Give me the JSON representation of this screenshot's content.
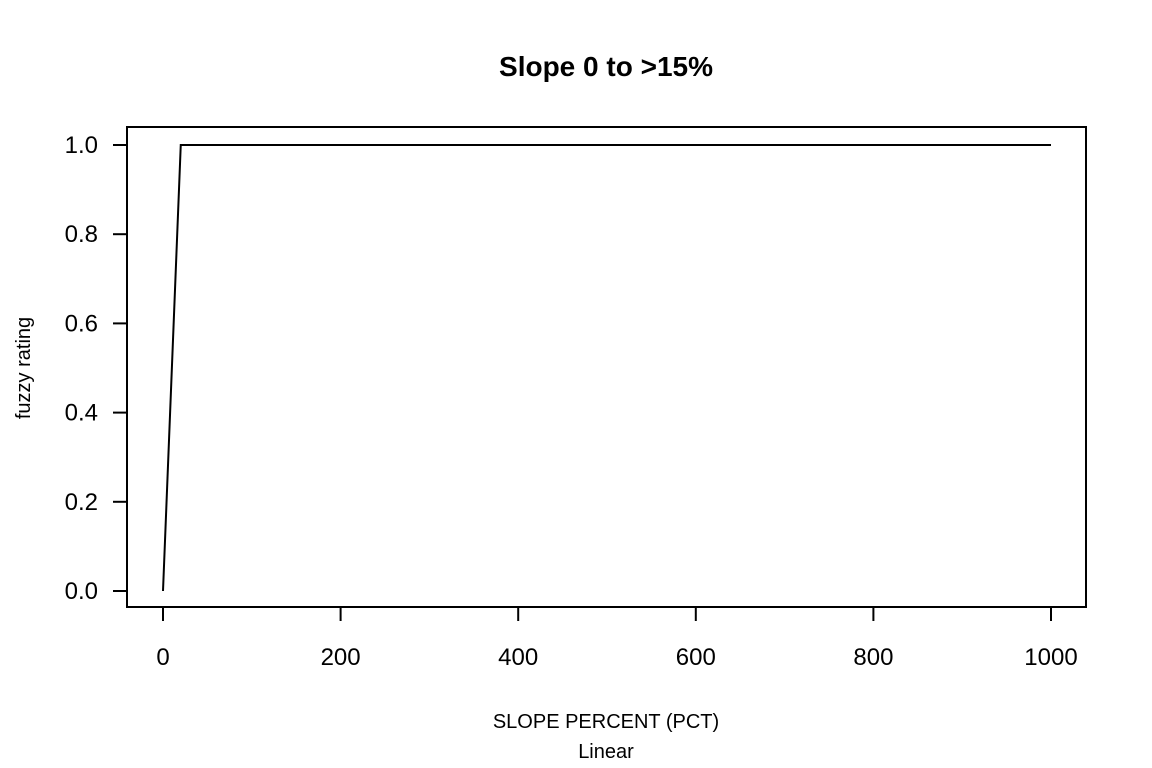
{
  "chart_data": {
    "type": "line",
    "title": "Slope 0 to >15%",
    "xlabel": "SLOPE PERCENT (PCT)",
    "subtitle": "Linear",
    "ylabel": "fuzzy rating",
    "x": [
      0,
      20,
      1000
    ],
    "series": [
      {
        "values": [
          0,
          1,
          1
        ]
      }
    ],
    "xlim": [
      0,
      1000
    ],
    "ylim": [
      0,
      1
    ],
    "x_ticks": [
      0,
      200,
      400,
      600,
      800,
      1000
    ],
    "x_tick_labels": [
      "0",
      "200",
      "400",
      "600",
      "800",
      "1000"
    ],
    "y_ticks": [
      0,
      0.2,
      0.4,
      0.6,
      0.8,
      1
    ],
    "y_tick_labels": [
      "0.0",
      "0.2",
      "0.4",
      "0.6",
      "0.8",
      "1.0"
    ],
    "grid": false,
    "line_color": "#000000"
  }
}
